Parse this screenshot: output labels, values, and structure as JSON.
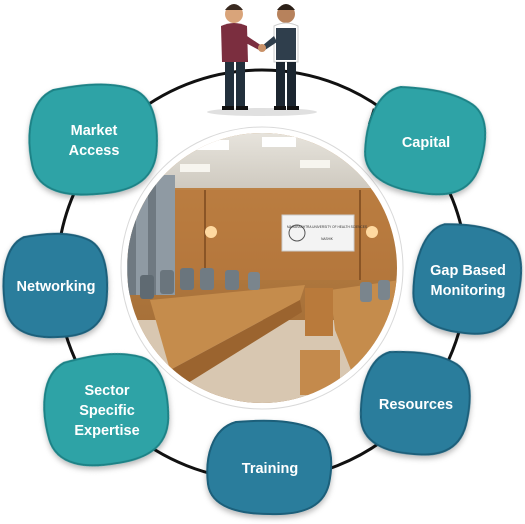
{
  "colors": {
    "ring": "#111111",
    "node_teal": "#2ea3a6",
    "node_teal_dark": "#1f8286",
    "node_blue": "#2a7d9c",
    "node_blue_dark": "#1b5f7a",
    "label": "#ffffff"
  },
  "center_image": {
    "icon": "conference-room-photo",
    "sign_lines": [
      "MAHARASHTRA UNIVERSITY OF HEALTH SCIENCES",
      "NASHIK"
    ]
  },
  "top_image": {
    "icon": "handshake-illustration"
  },
  "nodes": [
    {
      "id": "market-access",
      "lines": [
        "Market",
        "Access"
      ],
      "color": "teal"
    },
    {
      "id": "capital",
      "lines": [
        "Capital"
      ],
      "color": "teal"
    },
    {
      "id": "networking",
      "lines": [
        "Networking"
      ],
      "color": "blue"
    },
    {
      "id": "gap-based-monitoring",
      "lines": [
        "Gap Based",
        "Monitoring"
      ],
      "color": "blue"
    },
    {
      "id": "sector-specific-expertise",
      "lines": [
        "Sector",
        "Specific",
        "Expertise"
      ],
      "color": "teal"
    },
    {
      "id": "resources",
      "lines": [
        "Resources"
      ],
      "color": "blue"
    },
    {
      "id": "training",
      "lines": [
        "Training"
      ],
      "color": "blue"
    }
  ]
}
